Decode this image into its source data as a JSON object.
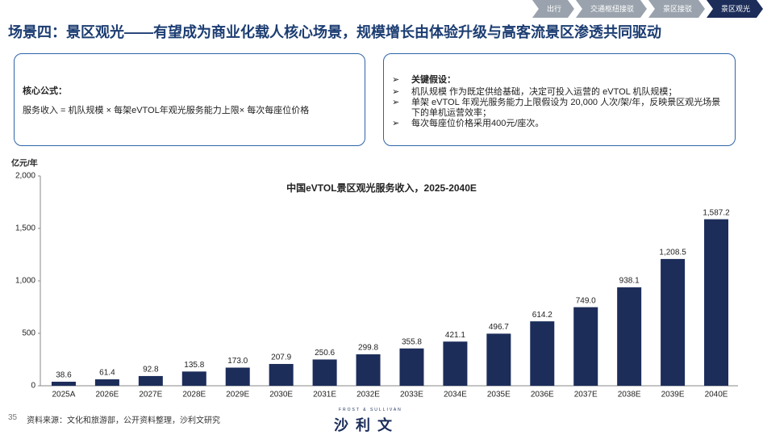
{
  "nav": {
    "tabs": [
      "出行",
      "交通枢纽接驳",
      "景区接驳",
      "景区观光"
    ]
  },
  "header": {
    "title": "场景四：景区观光——有望成为商业化载人核心场景，规模增长由体验升级与高客流景区渗透共同驱动"
  },
  "formula_box": {
    "title": "核心公式：",
    "text": "服务收入 = 机队规模 × 每架eVTOL年观光服务能力上限× 每次每座位价格"
  },
  "assumption_box": {
    "title": "关键假设：",
    "items": [
      "机队规模 作为既定供给基础，决定可投入运营的 eVTOL 机队规模；",
      "单架 eVTOL 年观光服务能力上限假设为 20,000 人次/架/年，反映景区观光场景下的单机运营效率；",
      "每次每座位价格采用400元/座次。"
    ]
  },
  "chart_data": {
    "type": "bar",
    "title": "中国eVTOL景区观光服务收入，2025-2040E",
    "y_label": "亿元/年",
    "categories": [
      "2025A",
      "2026E",
      "2027E",
      "2028E",
      "2029E",
      "2030E",
      "2031E",
      "2032E",
      "2033E",
      "2034E",
      "2035E",
      "2036E",
      "2037E",
      "2038E",
      "2039E",
      "2040E"
    ],
    "values": [
      38.6,
      61.4,
      92.8,
      135.8,
      173.0,
      207.9,
      250.6,
      299.8,
      355.8,
      421.1,
      496.7,
      614.2,
      749.0,
      938.1,
      1208.5,
      1587.2
    ],
    "value_labels": [
      "38.6",
      "61.4",
      "92.8",
      "135.8",
      "173.0",
      "207.9",
      "250.6",
      "299.8",
      "355.8",
      "421.1",
      "496.7",
      "614.2",
      "749.0",
      "938.1",
      "1,208.5",
      "1,587.2"
    ],
    "color": "#1c2d5a",
    "ylim": [
      0,
      2000
    ],
    "yticks": [
      0,
      500,
      {
        "value": 1000,
        "label": "1,000"
      },
      {
        "value": 1500,
        "label": "1,500"
      },
      {
        "value": 2000,
        "label": "2,000"
      }
    ]
  },
  "footer": {
    "page": "35",
    "source": "资料来源：文化和旅游部，公开资料整理，沙利文研究",
    "logo_small": "FROST & SULLIVAN",
    "logo": "沙 利 文"
  }
}
